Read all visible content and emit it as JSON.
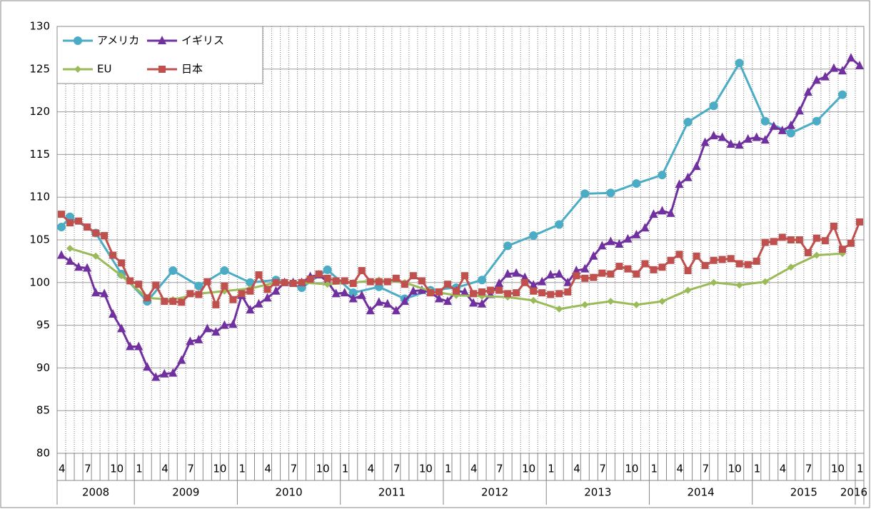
{
  "chart_data": {
    "type": "line",
    "categories": [
      "4",
      null,
      null,
      "7",
      null,
      null,
      "10",
      null,
      null,
      "1",
      null,
      null,
      "4",
      null,
      null,
      "7",
      null,
      null,
      "10",
      null,
      null,
      "1",
      null,
      null,
      "4",
      null,
      null,
      "7",
      null,
      null,
      "10",
      null,
      null,
      "1",
      null,
      null,
      "4",
      null,
      null,
      "7",
      null,
      null,
      "10",
      null,
      null,
      "1",
      null,
      null,
      "4",
      null,
      null,
      "7",
      null,
      null,
      "10",
      null,
      null,
      "1",
      null,
      null,
      "4",
      null,
      null,
      "7",
      null,
      null,
      "10",
      null,
      null,
      "1",
      null,
      null,
      "4",
      null,
      null,
      "7",
      null,
      null,
      "10",
      null,
      null,
      "1",
      null,
      null,
      "4",
      null,
      null,
      "7",
      null,
      null,
      "10",
      null,
      null,
      "1"
    ],
    "x_groups": [
      {
        "label": "2008",
        "start": 0,
        "end": 8
      },
      {
        "label": "2009",
        "start": 9,
        "end": 20
      },
      {
        "label": "2010",
        "start": 21,
        "end": 32
      },
      {
        "label": "2011",
        "start": 33,
        "end": 44
      },
      {
        "label": "2012",
        "start": 45,
        "end": 56
      },
      {
        "label": "2013",
        "start": 57,
        "end": 68
      },
      {
        "label": "2014",
        "start": 69,
        "end": 80
      },
      {
        "label": "2015",
        "start": 81,
        "end": 92
      },
      {
        "label": "2016",
        "start": 93,
        "end": 93
      }
    ],
    "ylim": [
      80,
      130
    ],
    "yticks": [
      80,
      85,
      90,
      95,
      100,
      105,
      110,
      115,
      120,
      125,
      130
    ],
    "grid": true,
    "legend": "top-left",
    "series": [
      {
        "name": "アメリカ",
        "color": "#4bacc6",
        "marker": "circle",
        "x": [
          0,
          1,
          4,
          7,
          10,
          13,
          16,
          19,
          22,
          25,
          28,
          31,
          34,
          37,
          40,
          43,
          46,
          49,
          52,
          55,
          58,
          61,
          64,
          67,
          70,
          73,
          76,
          79,
          82,
          85,
          88,
          91
        ],
        "values": [
          106.5,
          107.7,
          105.8,
          101.0,
          97.8,
          101.4,
          99.6,
          101.4,
          100.0,
          100.3,
          99.4,
          101.5,
          98.8,
          99.5,
          98.1,
          99.1,
          99.4,
          100.3,
          104.3,
          105.5,
          106.8,
          110.4,
          110.5,
          111.6,
          112.6,
          118.8,
          120.7,
          125.7,
          118.9,
          117.5,
          118.9,
          122.0
        ]
      },
      {
        "name": "イギリス",
        "color": "#7030a0",
        "marker": "triangle",
        "values": [
          103.2,
          102.5,
          101.8,
          101.7,
          98.8,
          98.7,
          96.3,
          94.6,
          92.5,
          92.5,
          90.1,
          88.9,
          89.3,
          89.4,
          90.9,
          93.1,
          93.3,
          94.6,
          94.2,
          95.0,
          95.1,
          98.5,
          96.8,
          97.5,
          98.2,
          99.0,
          100.0,
          100.0,
          100.0,
          100.7,
          100.9,
          100.1,
          98.7,
          98.8,
          98.1,
          98.5,
          96.7,
          97.7,
          97.5,
          96.7,
          97.8,
          99.0,
          99.1,
          98.9,
          98.1,
          97.8,
          99.0,
          98.9,
          97.6,
          97.5,
          98.6,
          99.9,
          101.0,
          101.1,
          100.6,
          99.7,
          100.1,
          100.9,
          101.0,
          100.0,
          101.4,
          101.6,
          103.1,
          104.3,
          104.8,
          104.5,
          105.1,
          105.6,
          106.4,
          108.0,
          108.4,
          108.1,
          111.5,
          112.3,
          113.6,
          116.4,
          117.2,
          117.0,
          116.2,
          116.1,
          116.8,
          117.0,
          116.7,
          118.3,
          117.8,
          118.4,
          120.1,
          122.3,
          123.7,
          124.1,
          125.1,
          124.8,
          126.3,
          125.4
        ]
      },
      {
        "name": "EU",
        "color": "#9bbb59",
        "marker": "diamond",
        "x": [
          1,
          4,
          7,
          10,
          13,
          16,
          19,
          22,
          25,
          28,
          31,
          34,
          37,
          40,
          43,
          46,
          49,
          52,
          55,
          58,
          61,
          64,
          67,
          70,
          73,
          76,
          79,
          82,
          85,
          88,
          91
        ],
        "values": [
          104.0,
          103.1,
          100.8,
          98.2,
          98.0,
          98.7,
          99.0,
          99.3,
          100.0,
          100.0,
          99.8,
          100.0,
          100.3,
          100.0,
          99.0,
          98.5,
          98.4,
          98.3,
          97.9,
          96.9,
          97.4,
          97.8,
          97.4,
          97.8,
          99.1,
          100.0,
          99.7,
          100.1,
          101.8,
          103.2,
          103.4
        ]
      },
      {
        "name": "日本",
        "color": "#c0504d",
        "marker": "square",
        "values": [
          108.0,
          107.0,
          107.2,
          106.5,
          105.8,
          105.5,
          103.2,
          102.3,
          100.2,
          99.8,
          98.2,
          99.7,
          97.8,
          97.8,
          97.7,
          98.7,
          98.6,
          100.1,
          97.4,
          99.6,
          98.0,
          98.7,
          99.0,
          100.9,
          99.2,
          100.0,
          100.0,
          99.9,
          100.0,
          100.4,
          101.0,
          100.5,
          100.2,
          100.2,
          99.9,
          101.4,
          100.1,
          100.1,
          100.1,
          100.5,
          99.8,
          100.8,
          100.2,
          98.8,
          98.9,
          99.8,
          99.0,
          100.8,
          98.7,
          98.9,
          99.1,
          99.1,
          98.7,
          98.8,
          100.0,
          99.0,
          98.8,
          98.6,
          98.7,
          98.9,
          100.8,
          100.5,
          100.6,
          101.1,
          101.0,
          101.9,
          101.6,
          101.0,
          102.2,
          101.5,
          101.8,
          102.6,
          103.3,
          101.4,
          103.1,
          102.0,
          102.6,
          102.7,
          102.8,
          102.2,
          102.1,
          102.5,
          104.7,
          104.8,
          105.3,
          105.0,
          105.0,
          103.5,
          105.2,
          104.9,
          106.6,
          103.9,
          104.6,
          107.1
        ]
      }
    ]
  }
}
